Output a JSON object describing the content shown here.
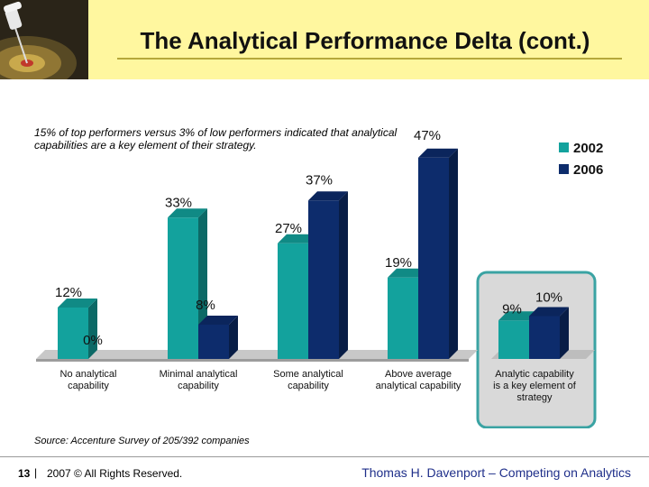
{
  "header": {
    "title": "The Analytical Performance Delta (cont.)"
  },
  "annotation": "15% of top performers versus 3% of low performers indicated that analytical capabilities are a key element of their strategy.",
  "source": "Source: Accenture Survey of 205/392 companies",
  "footer": {
    "page_number": "13",
    "separator": "|",
    "copyright": "2007 © All Rights Reserved.",
    "author": "Thomas H. Davenport – Competing on Analytics"
  },
  "colors": {
    "series_2002": "#13a29d",
    "series_2006": "#0d2c6c",
    "header_bg": "#fff79f",
    "highlight_bg": "#d9d9d9",
    "highlight_border": "#3aa3a3"
  },
  "chart_data": {
    "type": "bar",
    "title": "",
    "xlabel": "",
    "ylabel": "",
    "ylim": [
      0,
      50
    ],
    "categories": [
      [
        "No analytical",
        "capability"
      ],
      [
        "Minimal analytical",
        "capability"
      ],
      [
        "Some analytical",
        "capability"
      ],
      [
        "Above average",
        "analytical capability"
      ],
      [
        "Analytic capability",
        "is a key element of",
        "strategy"
      ]
    ],
    "series": [
      {
        "name": "2002",
        "values": [
          12,
          33,
          27,
          19,
          9
        ]
      },
      {
        "name": "2006",
        "values": [
          0,
          8,
          37,
          47,
          10
        ]
      }
    ],
    "value_labels": [
      [
        "12%",
        "0%"
      ],
      [
        "33%",
        "8%"
      ],
      [
        "27%",
        "37%"
      ],
      [
        "19%",
        "47%"
      ],
      [
        "9%",
        "10%"
      ]
    ],
    "legend": [
      "2002",
      "2006"
    ],
    "highlight_category_index": 4
  }
}
